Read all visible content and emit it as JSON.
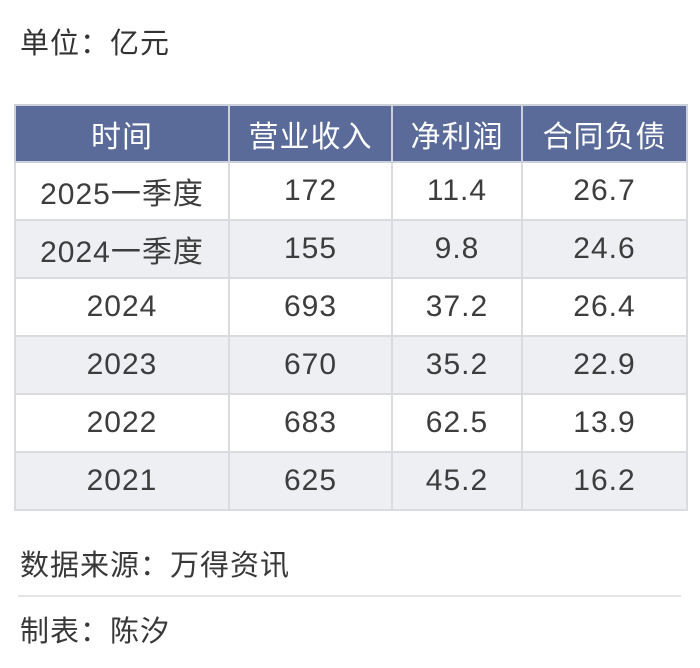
{
  "labels": {
    "unit": "单位：亿元",
    "source": "数据来源：万得资讯",
    "author": "制表：陈汐"
  },
  "colors": {
    "header_bg": "#5a6b9a",
    "header_text": "#ffffff",
    "alt_row_bg": "#edeff3",
    "body_text": "#3d3d3d",
    "border": "#d9dbdf",
    "divider": "#e4e4e4"
  },
  "chart_data": {
    "type": "table",
    "title": "单位：亿元",
    "columns": [
      "时间",
      "营业收入",
      "净利润",
      "合同负债"
    ],
    "rows": [
      [
        "2025一季度",
        172,
        11.4,
        26.7
      ],
      [
        "2024一季度",
        155,
        9.8,
        24.6
      ],
      [
        "2024",
        693,
        37.2,
        26.4
      ],
      [
        "2023",
        670,
        35.2,
        22.9
      ],
      [
        "2022",
        683,
        62.5,
        13.9
      ],
      [
        "2021",
        625,
        45.2,
        16.2
      ]
    ],
    "source": "数据来源：万得资讯",
    "author": "制表：陈汐"
  }
}
